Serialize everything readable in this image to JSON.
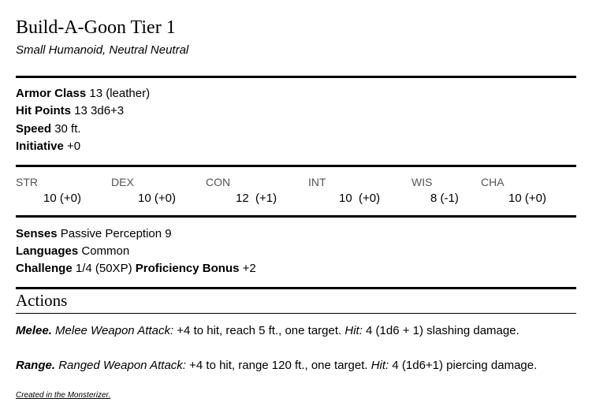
{
  "title": "Build-A-Goon Tier 1",
  "subtitle": "Small Humanoid, Neutral Neutral",
  "props": [
    {
      "label": "Armor Class",
      "value": "13 (leather)"
    },
    {
      "label": "Hit Points",
      "value": "13 3d6+3"
    },
    {
      "label": "Speed",
      "value": "30 ft."
    },
    {
      "label": "Initiative",
      "value": "+0"
    }
  ],
  "abilities": [
    {
      "name": "STR",
      "score": "10 (+0)"
    },
    {
      "name": "DEX",
      "score": "10 (+0)"
    },
    {
      "name": "CON",
      "score": "12  (+1)"
    },
    {
      "name": "INT",
      "score": "10  (+0)"
    },
    {
      "name": "WIS",
      "score": "8 (-1)"
    },
    {
      "name": "CHA",
      "score": "10 (+0)"
    }
  ],
  "details": {
    "senses_label": "Senses",
    "senses": "Passive Perception 9",
    "languages_label": "Languages",
    "languages": "Common",
    "challenge_label": "Challenge",
    "challenge": "1/4 (50XP)",
    "prof_label": "Proficiency Bonus",
    "prof": "+2"
  },
  "actions_heading": "Actions",
  "actions": [
    {
      "name": "Melee.",
      "type": "Melee Weapon Attack:",
      "text": "+4 to hit, reach 5 ft., one target.",
      "hit": "Hit:",
      "damage": "4 (1d6 + 1) slashing damage."
    },
    {
      "name": "Range.",
      "type": "Ranged Weapon Attack:",
      "text": "+4 to hit, range 120 ft., one target.",
      "hit": "Hit:",
      "damage": "4 (1d6+1) piercing damage."
    }
  ],
  "footer": "Created in the Monsterizer."
}
